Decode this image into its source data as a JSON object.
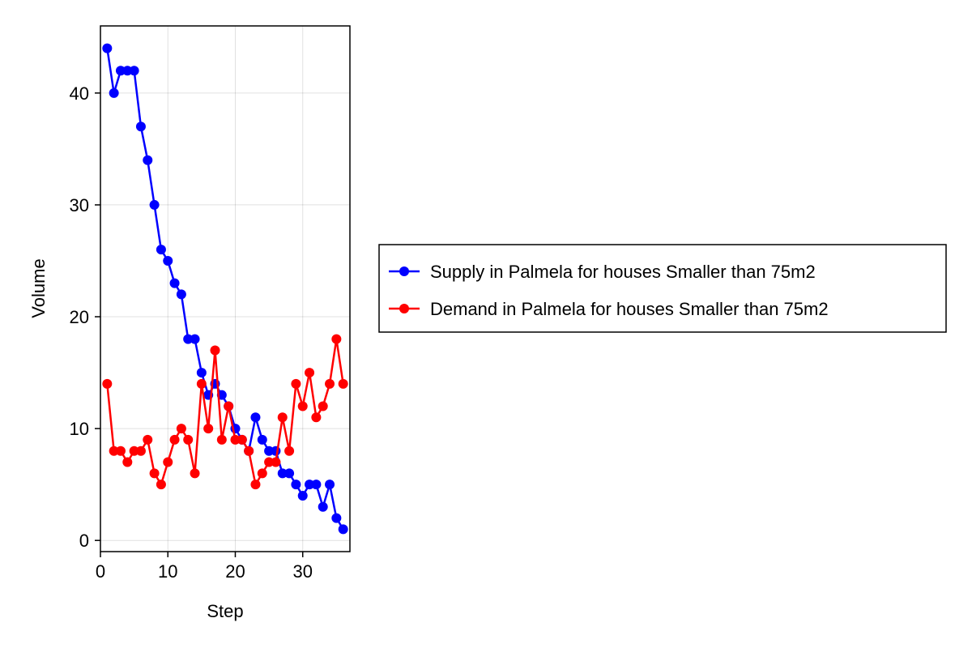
{
  "chart_data": {
    "type": "line",
    "xlabel": "Step",
    "ylabel": "Volume",
    "xlim": [
      0,
      37
    ],
    "ylim": [
      -1,
      46
    ],
    "xticks": [
      0,
      10,
      20,
      30
    ],
    "yticks": [
      0,
      10,
      20,
      30,
      40
    ],
    "grid": true,
    "legend_position": "right",
    "x": [
      1,
      2,
      3,
      4,
      5,
      6,
      7,
      8,
      9,
      10,
      11,
      12,
      13,
      14,
      15,
      16,
      17,
      18,
      19,
      20,
      21,
      22,
      23,
      24,
      25,
      26,
      27,
      28,
      29,
      30,
      31,
      32,
      33,
      34,
      35,
      36
    ],
    "series": [
      {
        "name": "Supply in Palmela for houses Smaller than 75m2",
        "color": "#0000ff",
        "values": [
          44,
          40,
          42,
          42,
          42,
          37,
          34,
          30,
          26,
          25,
          23,
          22,
          18,
          18,
          15,
          13,
          14,
          13,
          12,
          10,
          9,
          8,
          11,
          9,
          8,
          8,
          6,
          6,
          5,
          4,
          5,
          5,
          3,
          5,
          2,
          1
        ]
      },
      {
        "name": "Demand in Palmela for houses Smaller than 75m2",
        "color": "#ff0000",
        "values": [
          14,
          8,
          8,
          7,
          8,
          8,
          9,
          6,
          5,
          7,
          9,
          10,
          9,
          6,
          14,
          10,
          17,
          9,
          12,
          9,
          9,
          8,
          5,
          6,
          7,
          7,
          11,
          8,
          14,
          12,
          15,
          11,
          12,
          14,
          18,
          14
        ]
      }
    ]
  }
}
